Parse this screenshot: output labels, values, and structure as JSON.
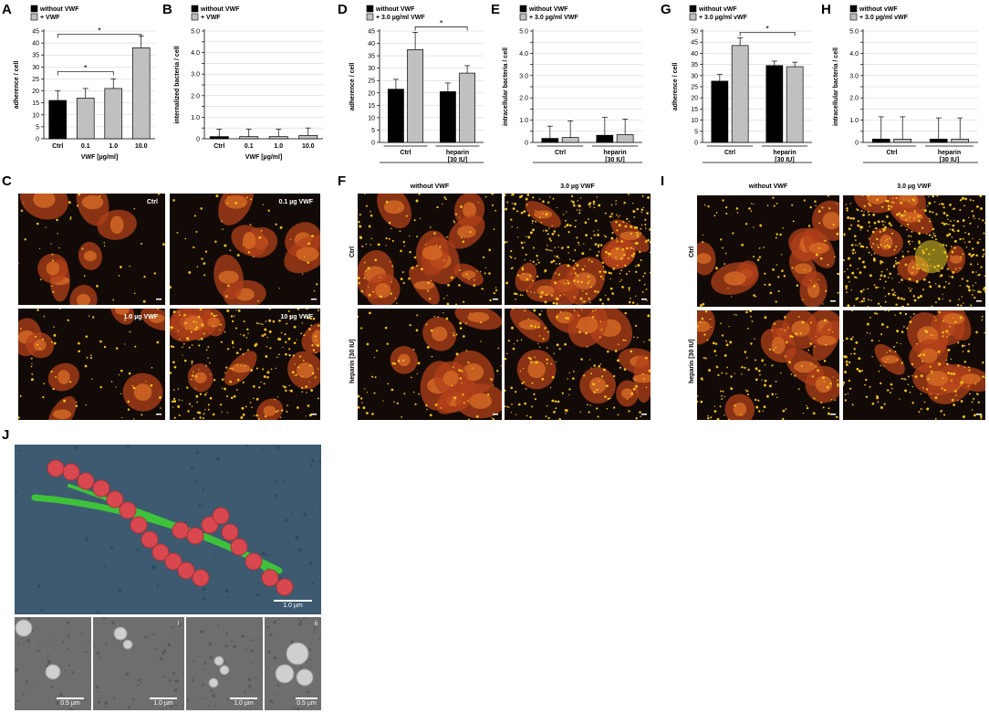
{
  "panel_labels": {
    "A": "A",
    "B": "B",
    "C": "C",
    "D": "D",
    "E": "E",
    "F": "F",
    "G": "G",
    "H": "H",
    "I": "I",
    "J": "J"
  },
  "colors": {
    "without": "#000000",
    "with": "#c0c0c0",
    "cell": "#c0461c",
    "bacteria": "#f2c31c",
    "sem_bg": "#3d5a70",
    "sem_red": "#d9474f",
    "sem_green": "#3ec23a"
  },
  "chart_data": [
    {
      "id": "A",
      "type": "bar",
      "categories": [
        "Ctrl",
        "0.1",
        "1.0",
        "10.0"
      ],
      "values": [
        16,
        17,
        21,
        38
      ],
      "errors": [
        4,
        4,
        4,
        5
      ],
      "bar_colors": [
        "without",
        "with",
        "with",
        "with"
      ],
      "legend": [
        "without VWF",
        "+ VWF"
      ],
      "ylabel": "adherence / cell",
      "xlabel": "VWF [µg/ml]",
      "ylim": [
        0,
        45
      ],
      "yticks": [
        0,
        5,
        10,
        15,
        20,
        25,
        30,
        35,
        40,
        45
      ],
      "sig": [
        {
          "from": 0,
          "to": 2,
          "label": "*"
        },
        {
          "from": 0,
          "to": 3,
          "label": "*"
        }
      ]
    },
    {
      "id": "B",
      "type": "bar",
      "categories": [
        "Ctrl",
        "0.1",
        "1.0",
        "10.0"
      ],
      "values": [
        0.1,
        0.1,
        0.1,
        0.15
      ],
      "errors": [
        0.35,
        0.35,
        0.35,
        0.35
      ],
      "bar_colors": [
        "without",
        "with",
        "with",
        "with"
      ],
      "legend": [
        "without VWF",
        "+ VWF"
      ],
      "ylabel": "internalized bacteria / cell",
      "xlabel": "VWF [µg/ml]",
      "ylim": [
        0,
        5
      ],
      "yticks": [
        "0",
        "",
        "1.0",
        "",
        "2.0",
        "",
        "3.0",
        "",
        "4.0",
        "",
        "5.0"
      ],
      "ytickvals": [
        0,
        0.5,
        1,
        1.5,
        2,
        2.5,
        3,
        3.5,
        4,
        4.5,
        5
      ]
    },
    {
      "id": "D",
      "type": "bar",
      "groups": [
        "Ctrl",
        "heparin\n[30 IU]"
      ],
      "series": [
        {
          "name": "without VWF",
          "values": [
            21.5,
            20.5
          ],
          "errors": [
            4,
            3.5
          ]
        },
        {
          "name": "+ 3.0 µg/ml VWF",
          "values": [
            37.5,
            28
          ],
          "errors": [
            7,
            3
          ]
        }
      ],
      "legend": [
        "without VWF",
        "+ 3.0 µg/ml VWF"
      ],
      "ylabel": "adherence / cell",
      "ylim": [
        0,
        45
      ],
      "yticks": [
        0,
        5,
        10,
        15,
        20,
        25,
        30,
        35,
        40,
        45
      ],
      "sig": [
        {
          "fromSeries": 1,
          "fromGroup": 0,
          "toSeries": 1,
          "toGroup": 1,
          "label": "*"
        }
      ]
    },
    {
      "id": "E",
      "type": "bar",
      "groups": [
        "Ctrl",
        "heparin\n[30 IU]"
      ],
      "series": [
        {
          "name": "without VWF",
          "values": [
            0.18,
            0.32
          ],
          "errors": [
            0.55,
            0.8
          ]
        },
        {
          "name": "+ 3.0 µg/ml VWF",
          "values": [
            0.22,
            0.35
          ],
          "errors": [
            0.75,
            0.7
          ]
        }
      ],
      "legend": [
        "without VWF",
        "+ 3.0 µg/ml VWF"
      ],
      "ylabel": "intracellular bacteria / cell",
      "ylim": [
        0,
        5
      ],
      "yticks": [
        "0",
        "",
        "1.0",
        "",
        "2.0",
        "",
        "3.0",
        "",
        "4.0",
        "",
        "5.0"
      ],
      "ytickvals": [
        0,
        0.5,
        1,
        1.5,
        2,
        2.5,
        3,
        3.5,
        4,
        4.5,
        5
      ]
    },
    {
      "id": "G",
      "type": "bar",
      "groups": [
        "Ctrl",
        "heparin\n[30 IU]"
      ],
      "series": [
        {
          "name": "without vWF",
          "values": [
            27.5,
            34.5
          ],
          "errors": [
            3,
            2
          ]
        },
        {
          "name": "+ 3.0 µg/ml vWF",
          "values": [
            43.5,
            34
          ],
          "errors": [
            3.5,
            2
          ]
        }
      ],
      "legend": [
        "without vWF",
        "+ 3.0 µg/ml vWF"
      ],
      "ylabel": "adherence / cell",
      "ylim": [
        0,
        50
      ],
      "yticks": [
        0,
        5,
        10,
        15,
        20,
        25,
        30,
        35,
        40,
        45,
        50
      ],
      "sig": [
        {
          "fromSeries": 1,
          "fromGroup": 0,
          "toSeries": 1,
          "toGroup": 1,
          "label": "*"
        }
      ]
    },
    {
      "id": "H",
      "type": "bar",
      "groups": [
        "Ctrl",
        "heparin\n[30 IU]"
      ],
      "series": [
        {
          "name": "without vWF",
          "values": [
            0.15,
            0.15
          ],
          "errors": [
            1.0,
            0.95
          ]
        },
        {
          "name": "+ 3.0 µg/ml vWF",
          "values": [
            0.15,
            0.15
          ],
          "errors": [
            1.0,
            0.95
          ]
        }
      ],
      "legend": [
        "without vWF",
        "+ 3.0 µg/ml vWF"
      ],
      "ylabel": "intracellular bacteria / cell",
      "ylim": [
        0,
        5
      ],
      "yticks": [
        "0",
        "",
        "1.0",
        "",
        "2.0",
        "",
        "3.0",
        "",
        "4.0",
        "",
        "5.0"
      ],
      "ytickvals": [
        0,
        0.5,
        1,
        1.5,
        2,
        2.5,
        3,
        3.5,
        4,
        4.5,
        5
      ]
    }
  ],
  "micro_C": {
    "labels": [
      "Ctrl",
      "0.1 µg VWF",
      "1.0 µg VWF",
      "10 µg VWF"
    ]
  },
  "micro_F": {
    "cols": [
      "without VWF",
      "3.0 µg VWF"
    ],
    "rows": [
      "Ctrl",
      "heparin [30 IU]"
    ]
  },
  "micro_I": {
    "cols": [
      "without VWF",
      "3.0 µg VWF"
    ],
    "rows": [
      "Ctrl",
      "heparin [30 IU]"
    ]
  },
  "sem": {
    "main_scale": "1.0 µm",
    "sub_scales": [
      "0.5 µm",
      "1.0 µm",
      "1.0 µm",
      "0.5 µm"
    ],
    "insets": [
      "i",
      "ii"
    ]
  }
}
